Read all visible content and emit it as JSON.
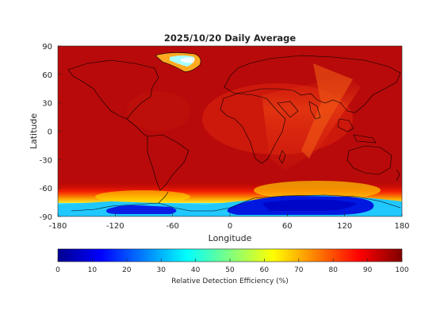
{
  "title": "2025/10/20 Daily Average",
  "xlabel": "Longitude",
  "ylabel": "Latitude",
  "colorbar_label": "Relative Detection Efficiency (%)",
  "x_ticks": [
    "-180",
    "-120",
    "-60",
    "0",
    "60",
    "120",
    "180"
  ],
  "y_ticks": [
    "90",
    "60",
    "30",
    "0",
    "-30",
    "-60",
    "-90"
  ],
  "colorbar_ticks": [
    "0",
    "10",
    "20",
    "30",
    "40",
    "50",
    "60",
    "70",
    "80",
    "90",
    "100"
  ],
  "colormap": "jet",
  "chart_data": {
    "type": "heatmap",
    "title": "2025/10/20 Daily Average",
    "xlabel": "Longitude",
    "ylabel": "Latitude",
    "xlim": [
      -180,
      180
    ],
    "ylim": [
      -90,
      90
    ],
    "x_ticks": [
      -180,
      -120,
      -60,
      0,
      60,
      120,
      180
    ],
    "y_ticks": [
      90,
      60,
      30,
      0,
      -30,
      -60,
      -90
    ],
    "colorbar": {
      "label": "Relative Detection Efficiency (%)",
      "min": 0,
      "max": 100,
      "ticks": [
        0,
        10,
        20,
        30,
        40,
        50,
        60,
        70,
        80,
        90,
        100
      ],
      "colormap": "jet"
    },
    "approx_regions": [
      {
        "description": "global background",
        "value": 95
      },
      {
        "description": "East Africa / Arabian Sea / Indian Ocean band",
        "value": 82
      },
      {
        "description": "Greenland interior",
        "value": 30
      },
      {
        "description": "Antarctica (East) interior",
        "value": 8
      },
      {
        "description": "Antarctica (West) interior",
        "value": 10
      },
      {
        "description": "Southern Ocean ice edge",
        "value": 55
      }
    ]
  }
}
